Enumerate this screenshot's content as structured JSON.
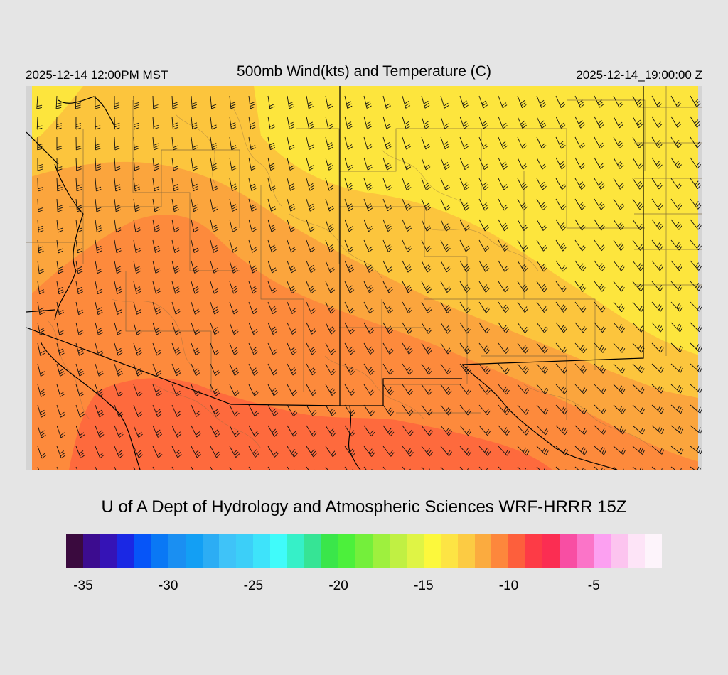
{
  "header": {
    "valid_local": "2025-12-14 12:00PM MST",
    "title": "500mb Wind(kts) and Temperature (C)",
    "valid_utc": "2025-12-14_19:00:00 Z"
  },
  "footer": {
    "credit": "U of A Dept of Hydrology and Atmospheric Sciences WRF-HRRR 15Z"
  },
  "colorbar": {
    "colors": [
      "#3a0a3e",
      "#3c0c8f",
      "#3513b6",
      "#1a28e4",
      "#0655f8",
      "#0a78f5",
      "#1a8ff2",
      "#139ff4",
      "#2cadf4",
      "#3fc3f8",
      "#3ccff8",
      "#3ee3fa",
      "#40fbfa",
      "#36f0c8",
      "#36e495",
      "#3ae64a",
      "#4cf03b",
      "#74ef3b",
      "#9ef03e",
      "#c0f043",
      "#dff445",
      "#fcf83c",
      "#fde444",
      "#fccb43",
      "#fbab3f",
      "#fd873c",
      "#fd5f3c",
      "#fd3b46",
      "#fb2d52",
      "#f84ea3",
      "#fb74c8",
      "#fca0f1",
      "#fcc4ef",
      "#fde4f7",
      "#fdf4fb"
    ],
    "labels": [
      "-35",
      "-30",
      "-25",
      "-20",
      "-15",
      "-10",
      "-5"
    ],
    "label_values": [
      -35,
      -30,
      -25,
      -20,
      -15,
      -10,
      -5
    ],
    "min": -36,
    "max": -1
  },
  "map": {
    "field": "500mb temperature with wind barbs",
    "temperature_colors": {
      "yellow": "#fde53d",
      "light_orange": "#fcc53d",
      "orange": "#fba53d",
      "dark_orange": "#fd8a3c",
      "red_orange": "#fe6a3d"
    },
    "background_edge": "#d4d4d4"
  }
}
